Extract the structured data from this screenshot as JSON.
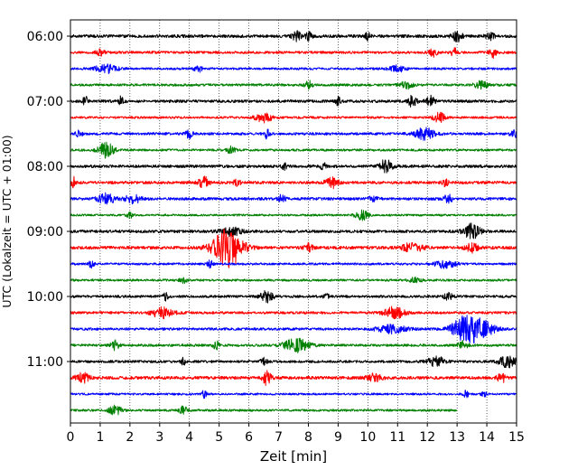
{
  "chart_data": {
    "type": "line",
    "title": "",
    "xlabel": "Zeit  [min]",
    "ylabel": "UTC (Lokalzeit = UTC + 01:00)",
    "xlim": [
      0,
      15
    ],
    "xticks": [
      0,
      1,
      2,
      3,
      4,
      5,
      6,
      7,
      8,
      9,
      10,
      11,
      12,
      13,
      14,
      15
    ],
    "xtick_labels": [
      "0",
      "1",
      "2",
      "3",
      "4",
      "5",
      "6",
      "7",
      "8",
      "9",
      "10",
      "11",
      "12",
      "13",
      "14",
      "15"
    ],
    "grid": {
      "x": true,
      "y": false,
      "style": "dotted"
    },
    "row_interval_min": 15,
    "start_time": "06:00",
    "ytick_labels": [
      {
        "label": "06:00",
        "row": 0
      },
      {
        "label": "07:00",
        "row": 4
      },
      {
        "label": "08:00",
        "row": 8
      },
      {
        "label": "09:00",
        "row": 12
      },
      {
        "label": "10:00",
        "row": 16
      },
      {
        "label": "11:00",
        "row": 20
      }
    ],
    "color_cycle": [
      "#000000",
      "#ff0000",
      "#0000ff",
      "#008000"
    ],
    "traces": [
      {
        "row": 0,
        "color": "#000000",
        "end_min": 15,
        "noise": 0.3,
        "events": [
          [
            7.6,
            0.9,
            0.1
          ],
          [
            8.0,
            0.8,
            0.08
          ],
          [
            10.0,
            0.8,
            0.06
          ],
          [
            13.0,
            1.0,
            0.12
          ],
          [
            14.1,
            0.7,
            0.1
          ]
        ]
      },
      {
        "row": 1,
        "color": "#ff0000",
        "end_min": 15,
        "noise": 0.25,
        "events": [
          [
            1.0,
            0.6,
            0.1
          ],
          [
            12.2,
            0.8,
            0.1
          ],
          [
            12.9,
            0.8,
            0.08
          ],
          [
            14.2,
            1.0,
            0.08
          ]
        ]
      },
      {
        "row": 2,
        "color": "#0000ff",
        "end_min": 15,
        "noise": 0.22,
        "events": [
          [
            1.2,
            0.9,
            0.25
          ],
          [
            4.3,
            0.6,
            0.1
          ],
          [
            11.0,
            0.6,
            0.2
          ]
        ]
      },
      {
        "row": 3,
        "color": "#008000",
        "end_min": 15,
        "noise": 0.25,
        "events": [
          [
            8.0,
            0.9,
            0.08
          ],
          [
            11.3,
            0.7,
            0.15
          ],
          [
            13.8,
            0.8,
            0.15
          ]
        ]
      },
      {
        "row": 4,
        "color": "#000000",
        "end_min": 15,
        "noise": 0.28,
        "events": [
          [
            0.5,
            1.0,
            0.06
          ],
          [
            1.7,
            1.0,
            0.06
          ],
          [
            9.0,
            0.8,
            0.06
          ],
          [
            11.5,
            1.1,
            0.1
          ],
          [
            12.1,
            1.0,
            0.1
          ]
        ]
      },
      {
        "row": 5,
        "color": "#ff0000",
        "end_min": 15,
        "noise": 0.22,
        "events": [
          [
            6.5,
            0.9,
            0.2
          ],
          [
            12.4,
            0.9,
            0.15
          ]
        ]
      },
      {
        "row": 6,
        "color": "#0000ff",
        "end_min": 15,
        "noise": 0.25,
        "events": [
          [
            0.3,
            0.7,
            0.08
          ],
          [
            4.0,
            0.9,
            0.08
          ],
          [
            6.6,
            1.0,
            0.06
          ],
          [
            11.9,
            1.1,
            0.25
          ],
          [
            14.9,
            0.9,
            0.08
          ]
        ]
      },
      {
        "row": 7,
        "color": "#008000",
        "end_min": 15,
        "noise": 0.22,
        "events": [
          [
            1.2,
            1.5,
            0.2
          ],
          [
            5.4,
            0.7,
            0.1
          ]
        ]
      },
      {
        "row": 8,
        "color": "#000000",
        "end_min": 15,
        "noise": 0.28,
        "events": [
          [
            7.2,
            0.7,
            0.06
          ],
          [
            8.5,
            0.7,
            0.06
          ],
          [
            10.6,
            1.3,
            0.15
          ]
        ]
      },
      {
        "row": 9,
        "color": "#ff0000",
        "end_min": 15,
        "noise": 0.28,
        "events": [
          [
            0.1,
            1.0,
            0.06
          ],
          [
            4.5,
            1.3,
            0.12
          ],
          [
            5.6,
            0.8,
            0.08
          ],
          [
            8.8,
            1.0,
            0.15
          ],
          [
            12.6,
            0.7,
            0.08
          ]
        ]
      },
      {
        "row": 10,
        "color": "#0000ff",
        "end_min": 15,
        "noise": 0.28,
        "events": [
          [
            1.2,
            1.0,
            0.2
          ],
          [
            2.1,
            0.8,
            0.2
          ],
          [
            7.1,
            0.8,
            0.08
          ],
          [
            10.2,
            0.7,
            0.1
          ],
          [
            12.7,
            0.8,
            0.1
          ]
        ]
      },
      {
        "row": 11,
        "color": "#008000",
        "end_min": 15,
        "noise": 0.2,
        "events": [
          [
            2.0,
            0.5,
            0.08
          ],
          [
            9.8,
            1.0,
            0.15
          ]
        ]
      },
      {
        "row": 12,
        "color": "#000000",
        "end_min": 15,
        "noise": 0.28,
        "events": [
          [
            5.4,
            0.8,
            0.25
          ],
          [
            13.5,
            1.5,
            0.2
          ]
        ]
      },
      {
        "row": 13,
        "color": "#ff0000",
        "end_min": 15,
        "noise": 0.3,
        "events": [
          [
            5.3,
            3.8,
            0.35
          ],
          [
            8.0,
            0.8,
            0.1
          ],
          [
            11.5,
            0.9,
            0.25
          ],
          [
            13.5,
            0.9,
            0.15
          ]
        ]
      },
      {
        "row": 14,
        "color": "#0000ff",
        "end_min": 15,
        "noise": 0.22,
        "events": [
          [
            0.7,
            0.8,
            0.06
          ],
          [
            4.7,
            0.8,
            0.06
          ],
          [
            12.6,
            0.8,
            0.25
          ]
        ]
      },
      {
        "row": 15,
        "color": "#008000",
        "end_min": 15,
        "noise": 0.22,
        "events": [
          [
            3.8,
            0.5,
            0.1
          ],
          [
            11.6,
            0.5,
            0.15
          ]
        ]
      },
      {
        "row": 16,
        "color": "#000000",
        "end_min": 15,
        "noise": 0.25,
        "events": [
          [
            3.2,
            0.7,
            0.06
          ],
          [
            6.6,
            1.1,
            0.15
          ],
          [
            8.6,
            0.8,
            0.06
          ],
          [
            12.7,
            0.7,
            0.1
          ]
        ]
      },
      {
        "row": 17,
        "color": "#ff0000",
        "end_min": 15,
        "noise": 0.25,
        "events": [
          [
            3.1,
            1.0,
            0.25
          ],
          [
            10.9,
            1.1,
            0.25
          ]
        ]
      },
      {
        "row": 18,
        "color": "#0000ff",
        "end_min": 15,
        "noise": 0.25,
        "events": [
          [
            10.8,
            0.8,
            0.35
          ],
          [
            13.1,
            1.3,
            0.25
          ],
          [
            13.5,
            2.0,
            0.3
          ],
          [
            13.9,
            1.0,
            0.3
          ]
        ]
      },
      {
        "row": 19,
        "color": "#008000",
        "end_min": 15,
        "noise": 0.25,
        "events": [
          [
            1.5,
            0.9,
            0.1
          ],
          [
            4.9,
            0.8,
            0.08
          ],
          [
            7.6,
            1.3,
            0.3
          ],
          [
            13.2,
            1.0,
            0.1
          ]
        ]
      },
      {
        "row": 20,
        "color": "#000000",
        "end_min": 15,
        "noise": 0.25,
        "events": [
          [
            3.8,
            0.7,
            0.06
          ],
          [
            6.5,
            0.7,
            0.08
          ],
          [
            12.3,
            1.0,
            0.2
          ],
          [
            14.7,
            1.2,
            0.2
          ]
        ]
      },
      {
        "row": 21,
        "color": "#ff0000",
        "end_min": 15,
        "noise": 0.3,
        "events": [
          [
            0.4,
            1.0,
            0.15
          ],
          [
            6.6,
            1.4,
            0.1
          ],
          [
            10.2,
            0.7,
            0.2
          ],
          [
            14.5,
            0.9,
            0.1
          ]
        ]
      },
      {
        "row": 22,
        "color": "#0000ff",
        "end_min": 15,
        "noise": 0.2,
        "events": [
          [
            4.5,
            0.7,
            0.06
          ],
          [
            13.3,
            0.7,
            0.06
          ],
          [
            13.9,
            0.7,
            0.06
          ]
        ]
      },
      {
        "row": 23,
        "color": "#008000",
        "end_min": 13,
        "noise": 0.22,
        "events": [
          [
            1.5,
            0.9,
            0.15
          ],
          [
            3.8,
            0.8,
            0.1
          ]
        ]
      }
    ]
  }
}
